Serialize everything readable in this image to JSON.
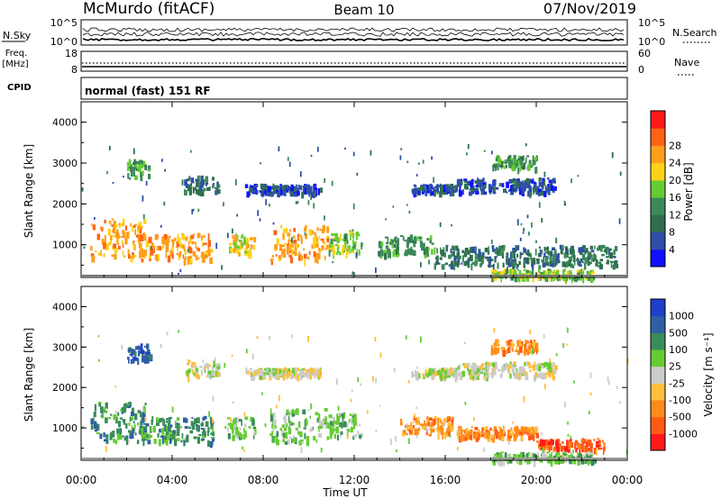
{
  "header": {
    "station": "McMurdo (fitACF)",
    "beam": "Beam 10",
    "date": "07/Nov/2019"
  },
  "noise_panel": {
    "left_label": "N.Sky",
    "right_label": "N.Search",
    "left_ticks": [
      "10^5",
      "10^0"
    ],
    "right_ticks": [
      "10^5",
      "10^0"
    ]
  },
  "freq_panel": {
    "left_label_1": "Freq.",
    "left_label_2": "[MHz]",
    "right_label": "Nave",
    "left_ticks": [
      "18",
      "8"
    ],
    "right_ticks": [
      "60",
      "0"
    ]
  },
  "cpid": {
    "label": "CPID",
    "mode_text": "normal (fast) 151 RF"
  },
  "x_axis": {
    "label": "Time UT",
    "ticks": [
      "00:00",
      "04:00",
      "08:00",
      "12:00",
      "16:00",
      "20:00",
      "00:00"
    ]
  },
  "y_axis": {
    "label": "Slant Range [km]",
    "ticks": [
      "1000",
      "2000",
      "3000",
      "4000"
    ]
  },
  "colors": {
    "power_scale": [
      "#1010ff",
      "#2e4fa6",
      "#2f6f4f",
      "#3c8a5a",
      "#66cc33",
      "#ffd21a",
      "#ff9e1a",
      "#ff6414",
      "#ff1a1a"
    ],
    "velocity_scale": [
      "#ff1a1a",
      "#ff5a14",
      "#ff8c1a",
      "#ffbe3c",
      "#cccccc",
      "#66cc33",
      "#3a8c5a",
      "#2e5fa6",
      "#1d40c8"
    ]
  },
  "chart_data": [
    {
      "type": "heatmap",
      "panel": "power",
      "colorbar_label": "Power [dB]",
      "colorbar_ticks": [
        "4",
        "8",
        "12",
        "16",
        "20",
        "24",
        "28"
      ],
      "x_range_hours": [
        0,
        24
      ],
      "y_range_km": [
        200,
        4500
      ],
      "echo_regions": [
        {
          "t0": 0.4,
          "t1": 2.8,
          "r0": 700,
          "r1": 1650,
          "level": 6
        },
        {
          "t0": 2.5,
          "t1": 5.8,
          "r0": 650,
          "r1": 1300,
          "level": 6
        },
        {
          "t0": 6.4,
          "t1": 7.6,
          "r0": 800,
          "r1": 1300,
          "level": 5
        },
        {
          "t0": 8.3,
          "t1": 10.8,
          "r0": 650,
          "r1": 1500,
          "level": 6
        },
        {
          "t0": 10.8,
          "t1": 12.3,
          "r0": 800,
          "r1": 1400,
          "level": 4
        },
        {
          "t0": 13.0,
          "t1": 15.5,
          "r0": 800,
          "r1": 1250,
          "level": 3
        },
        {
          "t0": 15.5,
          "t1": 23.5,
          "r0": 500,
          "r1": 1000,
          "level": 2
        },
        {
          "t0": 18.0,
          "t1": 22.5,
          "r0": 200,
          "r1": 420,
          "level": 4
        },
        {
          "t0": 2.0,
          "t1": 3.0,
          "r0": 2700,
          "r1": 3100,
          "level": 3
        },
        {
          "t0": 4.5,
          "t1": 6.0,
          "r0": 2300,
          "r1": 2700,
          "level": 2
        },
        {
          "t0": 7.2,
          "t1": 10.5,
          "r0": 2300,
          "r1": 2500,
          "level": 1
        },
        {
          "t0": 14.5,
          "t1": 16.5,
          "r0": 2300,
          "r1": 2500,
          "level": 1
        },
        {
          "t0": 16.5,
          "t1": 20.8,
          "r0": 2300,
          "r1": 2650,
          "level": 1
        },
        {
          "t0": 18.0,
          "t1": 20.0,
          "r0": 2900,
          "r1": 3200,
          "level": 3
        }
      ]
    },
    {
      "type": "heatmap",
      "panel": "velocity",
      "colorbar_label": "Velocity [m s⁻¹]",
      "colorbar_ticks": [
        "-1000",
        "-500",
        "-100",
        "-25",
        "25",
        "100",
        "500",
        "1000"
      ],
      "x_range_hours": [
        0,
        24
      ],
      "y_range_km": [
        200,
        4500
      ],
      "echo_regions": [
        {
          "t0": 0.4,
          "t1": 2.8,
          "r0": 700,
          "r1": 1650,
          "level": 6
        },
        {
          "t0": 2.5,
          "t1": 5.8,
          "r0": 650,
          "r1": 1300,
          "level": 6
        },
        {
          "t0": 6.4,
          "t1": 7.6,
          "r0": 800,
          "r1": 1300,
          "level": 5
        },
        {
          "t0": 8.3,
          "t1": 10.8,
          "r0": 650,
          "r1": 1500,
          "level": 5
        },
        {
          "t0": 10.8,
          "t1": 12.3,
          "r0": 800,
          "r1": 1400,
          "level": 5
        },
        {
          "t0": 14.0,
          "t1": 16.3,
          "r0": 850,
          "r1": 1300,
          "level": 2
        },
        {
          "t0": 16.5,
          "t1": 20.0,
          "r0": 800,
          "r1": 1050,
          "level": 2
        },
        {
          "t0": 20.0,
          "t1": 23.0,
          "r0": 500,
          "r1": 750,
          "level": 1
        },
        {
          "t0": 18.0,
          "t1": 22.5,
          "r0": 200,
          "r1": 420,
          "level": 5
        },
        {
          "t0": 2.0,
          "t1": 3.0,
          "r0": 2700,
          "r1": 3100,
          "level": 7
        },
        {
          "t0": 4.5,
          "t1": 6.0,
          "r0": 2300,
          "r1": 2700,
          "level": 4
        },
        {
          "t0": 7.2,
          "t1": 10.5,
          "r0": 2300,
          "r1": 2500,
          "level": 4
        },
        {
          "t0": 14.5,
          "t1": 16.5,
          "r0": 2300,
          "r1": 2500,
          "level": 4
        },
        {
          "t0": 16.5,
          "t1": 20.8,
          "r0": 2300,
          "r1": 2650,
          "level": 4
        },
        {
          "t0": 18.0,
          "t1": 20.0,
          "r0": 2900,
          "r1": 3200,
          "level": 2
        }
      ]
    }
  ]
}
